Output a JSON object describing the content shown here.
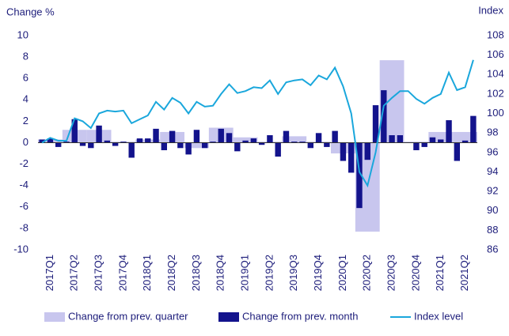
{
  "chart_data": {
    "type": "combo",
    "y_label": "Change %",
    "y2_label": "Index",
    "categories": [
      null,
      "2017Q1",
      null,
      null,
      "2017Q2",
      null,
      null,
      "2017Q3",
      null,
      null,
      "2017Q4",
      null,
      null,
      "2018Q1",
      null,
      null,
      "2018Q2",
      null,
      null,
      "2018Q3",
      null,
      null,
      "2018Q4",
      null,
      null,
      "2019Q1",
      null,
      null,
      "2019Q2",
      null,
      null,
      "2019Q3",
      null,
      null,
      "2019Q4",
      null,
      null,
      "2020Q1",
      null,
      null,
      "2020Q2",
      null,
      null,
      "2020Q3",
      null,
      null,
      "2020Q4",
      null,
      null,
      "2021Q1",
      null,
      null,
      "2021Q2",
      null
    ],
    "series": [
      {
        "name": "Change from prev. quarter",
        "color": "#c8c6ee",
        "kind": "quarter-bar",
        "values": [
          null,
          0.3,
          null,
          null,
          1.2,
          null,
          null,
          1.2,
          null,
          null,
          0.1,
          null,
          null,
          0.3,
          null,
          null,
          1.0,
          null,
          null,
          -0.5,
          null,
          null,
          1.4,
          null,
          null,
          0.5,
          null,
          null,
          0.1,
          null,
          null,
          0.6,
          null,
          null,
          0.1,
          null,
          null,
          -1.0,
          null,
          null,
          -8.3,
          null,
          null,
          7.7,
          null,
          null,
          0.1,
          null,
          null,
          1.0,
          null,
          null,
          1.0,
          null
        ]
      },
      {
        "name": "Change from prev. month",
        "color": "#13138c",
        "kind": "month-bar",
        "values": [
          0.3,
          0.4,
          -0.4,
          0.1,
          2.2,
          -0.3,
          -0.5,
          1.6,
          0.2,
          -0.3,
          0.1,
          -1.4,
          0.4,
          0.4,
          1.3,
          -0.7,
          1.1,
          -0.5,
          -1.1,
          1.2,
          -0.5,
          0.1,
          1.3,
          0.9,
          -0.8,
          0.2,
          0.4,
          -0.2,
          0.7,
          -1.3,
          1.1,
          0.1,
          0.1,
          -0.5,
          0.9,
          -0.4,
          1.1,
          -1.7,
          -2.8,
          -6.1,
          -1.6,
          3.5,
          4.9,
          0.7,
          0.7,
          0.0,
          -0.7,
          -0.4,
          0.5,
          0.3,
          2.1,
          -1.7,
          0.2,
          2.5
        ]
      },
      {
        "name": "Index level",
        "color": "#1aa7dc",
        "kind": "line",
        "axis": "y2",
        "values": [
          97.0,
          97.5,
          97.2,
          97.2,
          99.5,
          99.2,
          98.5,
          100.0,
          100.3,
          100.2,
          100.3,
          99.0,
          99.4,
          99.8,
          101.2,
          100.4,
          101.6,
          101.1,
          100.0,
          101.2,
          100.7,
          100.8,
          102.0,
          103.0,
          102.1,
          102.3,
          102.7,
          102.6,
          103.4,
          102.0,
          103.2,
          103.4,
          103.5,
          102.9,
          103.9,
          103.5,
          104.7,
          102.8,
          100.0,
          94.0,
          92.6,
          96.0,
          100.8,
          101.6,
          102.3,
          102.3,
          101.5,
          101.0,
          101.6,
          102.0,
          104.2,
          102.4,
          102.7,
          105.5
        ]
      }
    ],
    "ylim": [
      -10,
      10
    ],
    "yticks": [
      -10,
      -8,
      -6,
      -4,
      -2,
      0,
      2,
      4,
      6,
      8,
      10
    ],
    "y2lim": [
      86,
      108
    ],
    "y2ticks": [
      86,
      88,
      90,
      92,
      94,
      96,
      98,
      100,
      102,
      104,
      106,
      108
    ],
    "grid": false
  }
}
